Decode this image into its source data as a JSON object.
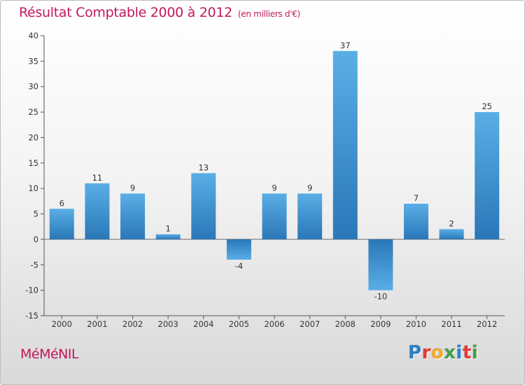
{
  "header": {
    "title": "Résultat Comptable 2000 à 2012",
    "subtitle": "(en milliers d'€)"
  },
  "footer": {
    "place": "MéMéNIL",
    "logo": "Proxiti"
  },
  "colors": {
    "title": "#c2185b",
    "bar_light": "#5aaee6",
    "bar_dark": "#2a77b8"
  },
  "chart_data": {
    "type": "bar",
    "title": "Résultat Comptable 2000 à 2012",
    "subtitle": "(en milliers d'€)",
    "xlabel": "",
    "ylabel": "",
    "categories": [
      "2000",
      "2001",
      "2002",
      "2003",
      "2004",
      "2005",
      "2006",
      "2007",
      "2008",
      "2009",
      "2010",
      "2011",
      "2012"
    ],
    "values": [
      6,
      11,
      9,
      1,
      13,
      -4,
      9,
      9,
      37,
      -10,
      7,
      2,
      25
    ],
    "ylim": [
      -15,
      40
    ],
    "yticks": [
      -15,
      -10,
      -5,
      0,
      5,
      10,
      15,
      20,
      25,
      30,
      35,
      40
    ],
    "grid": false,
    "data_labels": true
  }
}
